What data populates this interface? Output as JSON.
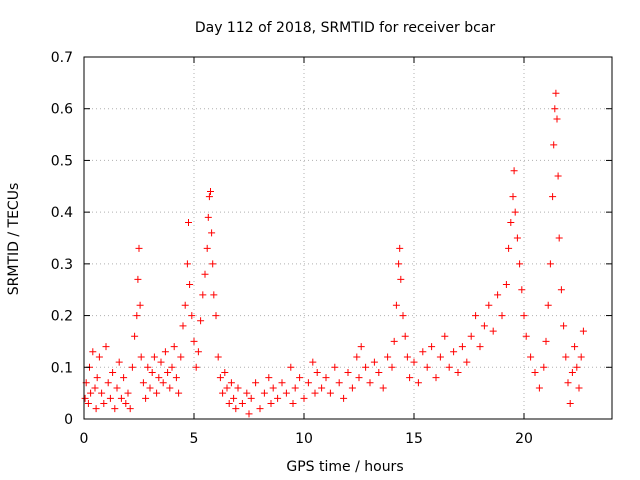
{
  "chart_data": {
    "type": "scatter",
    "title": "Day 112 of 2018, SRMTID for receiver bcar",
    "xlabel": "GPS time / hours",
    "ylabel": "SRMTID / TECUs",
    "xlim": [
      0,
      24
    ],
    "ylim": [
      0,
      0.7
    ],
    "xticks": [
      0,
      5,
      10,
      15,
      20
    ],
    "yticks": [
      0,
      0.1,
      0.2,
      0.3,
      0.4,
      0.5,
      0.6,
      0.7
    ],
    "ytick_labels": [
      "0",
      "0.1",
      "0.2",
      "0.3",
      "0.4",
      "0.5",
      "0.6",
      "0.7"
    ],
    "grid": true,
    "marker": "+",
    "colors": {
      "series": "#ff0000",
      "grid": "#b0b0b0",
      "axis": "#000000"
    },
    "series": [
      {
        "name": "SRMTID",
        "points": [
          [
            0.05,
            0.04
          ],
          [
            0.1,
            0.07
          ],
          [
            0.2,
            0.03
          ],
          [
            0.25,
            0.1
          ],
          [
            0.3,
            0.05
          ],
          [
            0.4,
            0.13
          ],
          [
            0.5,
            0.06
          ],
          [
            0.55,
            0.02
          ],
          [
            0.6,
            0.08
          ],
          [
            0.7,
            0.12
          ],
          [
            0.8,
            0.05
          ],
          [
            0.9,
            0.03
          ],
          [
            1.0,
            0.14
          ],
          [
            1.1,
            0.07
          ],
          [
            1.2,
            0.04
          ],
          [
            1.3,
            0.09
          ],
          [
            1.4,
            0.02
          ],
          [
            1.5,
            0.06
          ],
          [
            1.6,
            0.11
          ],
          [
            1.7,
            0.04
          ],
          [
            1.8,
            0.08
          ],
          [
            1.9,
            0.03
          ],
          [
            2.0,
            0.05
          ],
          [
            2.1,
            0.02
          ],
          [
            2.2,
            0.1
          ],
          [
            2.3,
            0.16
          ],
          [
            2.4,
            0.2
          ],
          [
            2.45,
            0.27
          ],
          [
            2.5,
            0.33
          ],
          [
            2.55,
            0.22
          ],
          [
            2.6,
            0.12
          ],
          [
            2.7,
            0.07
          ],
          [
            2.8,
            0.04
          ],
          [
            2.9,
            0.1
          ],
          [
            3.0,
            0.06
          ],
          [
            3.1,
            0.09
          ],
          [
            3.2,
            0.12
          ],
          [
            3.3,
            0.05
          ],
          [
            3.4,
            0.08
          ],
          [
            3.5,
            0.11
          ],
          [
            3.6,
            0.07
          ],
          [
            3.7,
            0.13
          ],
          [
            3.8,
            0.09
          ],
          [
            3.9,
            0.06
          ],
          [
            4.0,
            0.1
          ],
          [
            4.1,
            0.14
          ],
          [
            4.2,
            0.08
          ],
          [
            4.3,
            0.05
          ],
          [
            4.4,
            0.12
          ],
          [
            4.5,
            0.18
          ],
          [
            4.6,
            0.22
          ],
          [
            4.7,
            0.3
          ],
          [
            4.75,
            0.38
          ],
          [
            4.8,
            0.26
          ],
          [
            4.9,
            0.2
          ],
          [
            5.0,
            0.15
          ],
          [
            5.1,
            0.1
          ],
          [
            5.2,
            0.13
          ],
          [
            5.3,
            0.19
          ],
          [
            5.4,
            0.24
          ],
          [
            5.5,
            0.28
          ],
          [
            5.6,
            0.33
          ],
          [
            5.65,
            0.39
          ],
          [
            5.7,
            0.43
          ],
          [
            5.75,
            0.44
          ],
          [
            5.8,
            0.36
          ],
          [
            5.85,
            0.3
          ],
          [
            5.9,
            0.24
          ],
          [
            6.0,
            0.2
          ],
          [
            6.1,
            0.12
          ],
          [
            6.2,
            0.08
          ],
          [
            6.3,
            0.05
          ],
          [
            6.4,
            0.09
          ],
          [
            6.5,
            0.06
          ],
          [
            6.6,
            0.03
          ],
          [
            6.7,
            0.07
          ],
          [
            6.8,
            0.04
          ],
          [
            6.9,
            0.02
          ],
          [
            7.0,
            0.06
          ],
          [
            7.2,
            0.03
          ],
          [
            7.4,
            0.05
          ],
          [
            7.5,
            0.01
          ],
          [
            7.6,
            0.04
          ],
          [
            7.8,
            0.07
          ],
          [
            8.0,
            0.02
          ],
          [
            8.2,
            0.05
          ],
          [
            8.4,
            0.08
          ],
          [
            8.5,
            0.03
          ],
          [
            8.6,
            0.06
          ],
          [
            8.8,
            0.04
          ],
          [
            9.0,
            0.07
          ],
          [
            9.2,
            0.05
          ],
          [
            9.4,
            0.1
          ],
          [
            9.5,
            0.03
          ],
          [
            9.6,
            0.06
          ],
          [
            9.8,
            0.08
          ],
          [
            10.0,
            0.04
          ],
          [
            10.2,
            0.07
          ],
          [
            10.4,
            0.11
          ],
          [
            10.5,
            0.05
          ],
          [
            10.6,
            0.09
          ],
          [
            10.8,
            0.06
          ],
          [
            11.0,
            0.08
          ],
          [
            11.2,
            0.05
          ],
          [
            11.4,
            0.1
          ],
          [
            11.6,
            0.07
          ],
          [
            11.8,
            0.04
          ],
          [
            12.0,
            0.09
          ],
          [
            12.2,
            0.06
          ],
          [
            12.4,
            0.12
          ],
          [
            12.5,
            0.08
          ],
          [
            12.6,
            0.14
          ],
          [
            12.8,
            0.1
          ],
          [
            13.0,
            0.07
          ],
          [
            13.2,
            0.11
          ],
          [
            13.4,
            0.09
          ],
          [
            13.6,
            0.06
          ],
          [
            13.8,
            0.12
          ],
          [
            14.0,
            0.1
          ],
          [
            14.1,
            0.15
          ],
          [
            14.2,
            0.22
          ],
          [
            14.3,
            0.3
          ],
          [
            14.35,
            0.33
          ],
          [
            14.4,
            0.27
          ],
          [
            14.5,
            0.2
          ],
          [
            14.6,
            0.16
          ],
          [
            14.7,
            0.12
          ],
          [
            14.8,
            0.08
          ],
          [
            15.0,
            0.11
          ],
          [
            15.2,
            0.07
          ],
          [
            15.4,
            0.13
          ],
          [
            15.6,
            0.1
          ],
          [
            15.8,
            0.14
          ],
          [
            16.0,
            0.08
          ],
          [
            16.2,
            0.12
          ],
          [
            16.4,
            0.16
          ],
          [
            16.6,
            0.1
          ],
          [
            16.8,
            0.13
          ],
          [
            17.0,
            0.09
          ],
          [
            17.2,
            0.14
          ],
          [
            17.4,
            0.11
          ],
          [
            17.6,
            0.16
          ],
          [
            17.8,
            0.2
          ],
          [
            18.0,
            0.14
          ],
          [
            18.2,
            0.18
          ],
          [
            18.4,
            0.22
          ],
          [
            18.6,
            0.17
          ],
          [
            18.8,
            0.24
          ],
          [
            19.0,
            0.2
          ],
          [
            19.2,
            0.26
          ],
          [
            19.3,
            0.33
          ],
          [
            19.4,
            0.38
          ],
          [
            19.5,
            0.43
          ],
          [
            19.55,
            0.48
          ],
          [
            19.6,
            0.4
          ],
          [
            19.7,
            0.35
          ],
          [
            19.8,
            0.3
          ],
          [
            19.9,
            0.25
          ],
          [
            20.0,
            0.2
          ],
          [
            20.1,
            0.16
          ],
          [
            20.3,
            0.12
          ],
          [
            20.5,
            0.09
          ],
          [
            20.7,
            0.06
          ],
          [
            20.9,
            0.1
          ],
          [
            21.0,
            0.15
          ],
          [
            21.1,
            0.22
          ],
          [
            21.2,
            0.3
          ],
          [
            21.3,
            0.43
          ],
          [
            21.35,
            0.53
          ],
          [
            21.4,
            0.6
          ],
          [
            21.45,
            0.63
          ],
          [
            21.5,
            0.58
          ],
          [
            21.55,
            0.47
          ],
          [
            21.6,
            0.35
          ],
          [
            21.7,
            0.25
          ],
          [
            21.8,
            0.18
          ],
          [
            21.9,
            0.12
          ],
          [
            22.0,
            0.07
          ],
          [
            22.1,
            0.03
          ],
          [
            22.2,
            0.09
          ],
          [
            22.3,
            0.14
          ],
          [
            22.4,
            0.1
          ],
          [
            22.5,
            0.06
          ],
          [
            22.6,
            0.12
          ],
          [
            22.7,
            0.17
          ]
        ]
      }
    ]
  }
}
